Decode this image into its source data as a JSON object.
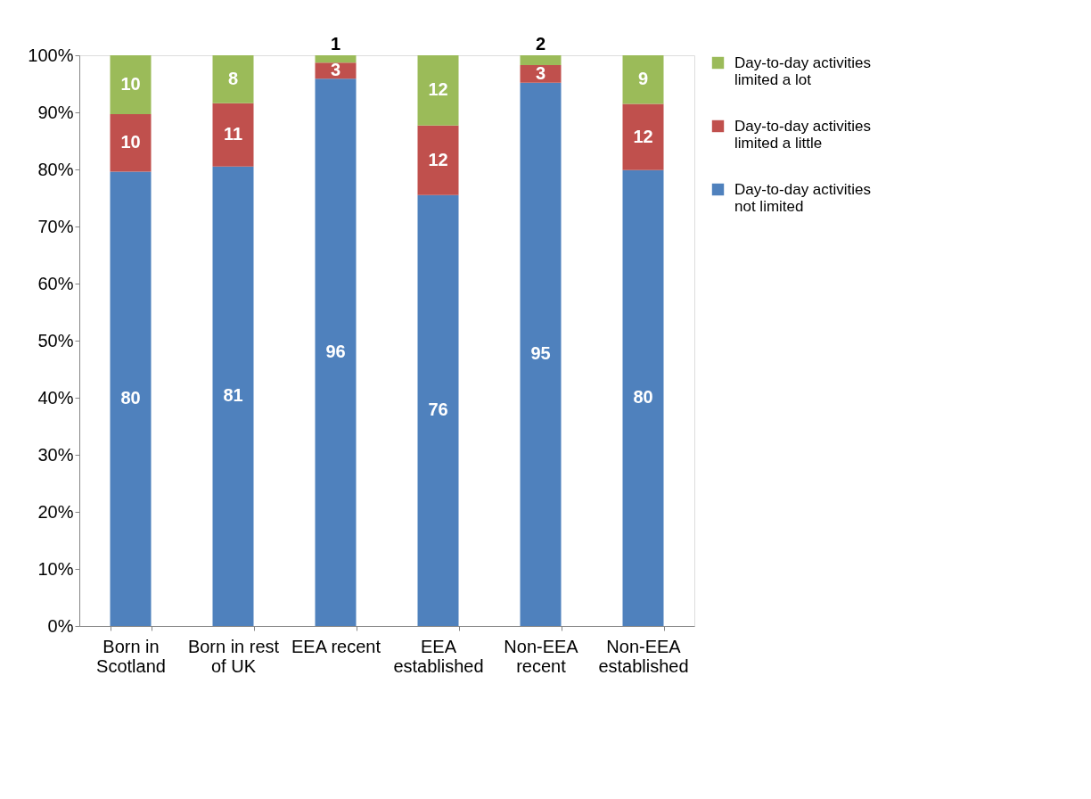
{
  "chart_data": {
    "type": "bar",
    "stacked": true,
    "categories": [
      "Born in Scotland",
      "Born in rest of UK",
      "EEA recent",
      "EEA established",
      "Non-EEA recent",
      "Non-EEA established"
    ],
    "series": [
      {
        "name": "Day-to-day activities not limited",
        "color": "#4f81bd",
        "values": [
          79.6,
          80.5,
          95.9,
          75.5,
          95.2,
          79.9
        ],
        "value_labels": [
          "80",
          "81",
          "96",
          "76",
          "95",
          "80"
        ]
      },
      {
        "name": "Day-to-day activities limited a little",
        "color": "#c0504d",
        "values": [
          10.1,
          11.1,
          2.8,
          12.2,
          3.1,
          11.6
        ],
        "value_labels": [
          "10",
          "11",
          "3",
          "12",
          "3",
          "12"
        ]
      },
      {
        "name": "Day-to-day activities limited a lot",
        "color": "#9bbb59",
        "values": [
          10.3,
          8.4,
          1.3,
          12.3,
          1.7,
          8.5
        ],
        "value_labels": [
          "10",
          "8",
          "1",
          "12",
          "2",
          "9"
        ]
      }
    ],
    "ylim": [
      0,
      100
    ],
    "yticks": [
      {
        "value": 0,
        "label": "0%"
      },
      {
        "value": 10,
        "label": "10%"
      },
      {
        "value": 20,
        "label": "20%"
      },
      {
        "value": 30,
        "label": "30%"
      },
      {
        "value": 40,
        "label": "40%"
      },
      {
        "value": 50,
        "label": "50%"
      },
      {
        "value": 60,
        "label": "60%"
      },
      {
        "value": 70,
        "label": "70%"
      },
      {
        "value": 80,
        "label": "80%"
      },
      {
        "value": 90,
        "label": "90%"
      },
      {
        "value": 100,
        "label": "100%"
      }
    ],
    "grid": false,
    "legend": "right"
  }
}
